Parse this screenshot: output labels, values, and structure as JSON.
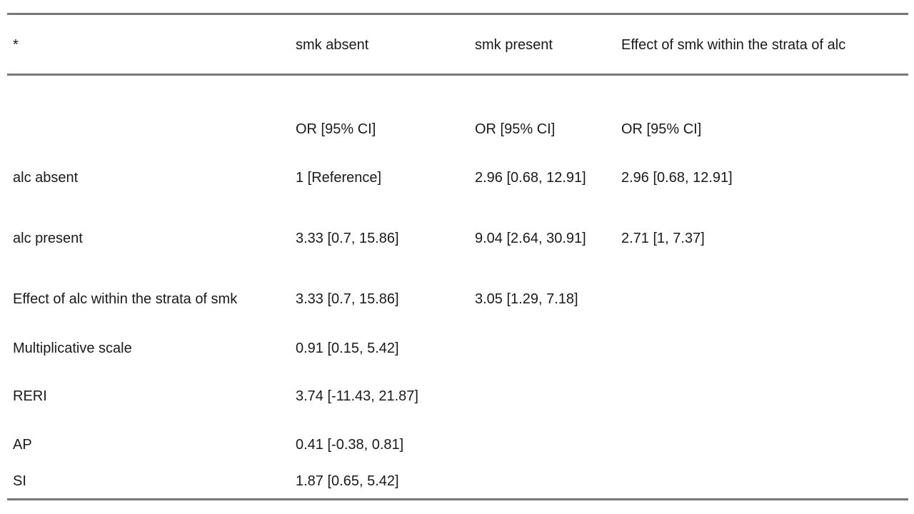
{
  "table": {
    "header": [
      "*",
      "smk absent",
      "smk present",
      "Effect of smk within the strata of alc"
    ],
    "rows": [
      [
        null,
        "OR [95% CI]",
        "OR [95% CI]",
        "OR [95% CI]"
      ],
      [
        "alc absent",
        "1 [Reference]",
        "2.96 [0.68, 12.91]",
        "2.96 [0.68, 12.91]"
      ],
      [
        "alc present",
        "3.33 [0.7, 15.86]",
        "9.04 [2.64, 30.91]",
        "2.71 [1, 7.37]"
      ],
      [
        "Effect of alc within the strata of smk",
        "3.33 [0.7, 15.86]",
        "3.05 [1.29, 7.18]"
      ],
      [
        "Multiplicative scale",
        "0.91 [0.15, 5.42]"
      ],
      [
        "RERI",
        "3.74 [-11.43, 21.87]"
      ],
      [
        "AP",
        "0.41 [-0.38, 0.81]"
      ],
      [
        "SI",
        "1.87 [0.65, 5.42]"
      ]
    ]
  }
}
